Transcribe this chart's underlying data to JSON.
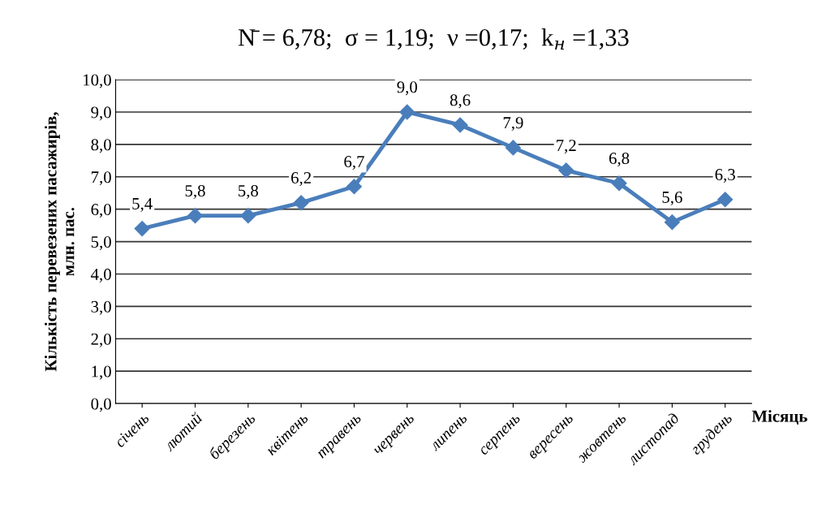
{
  "chart_data": {
    "type": "line",
    "title": "N̄ = 6,78;  σ = 1,19;  ν =0,17;  k$_{н}$ =1,33",
    "xlabel": "Місяць",
    "ylabel": "Кількість перевезених пасажирів,\nмлн. пас.",
    "categories": [
      "січень",
      "лютий",
      "березень",
      "квітень",
      "травень",
      "червень",
      "липень",
      "серпень",
      "вересень",
      "жовтень",
      "листопад",
      "грудень"
    ],
    "series": [
      {
        "color": "#4a7ebb",
        "values": [
          5.4,
          5.8,
          5.8,
          6.2,
          6.7,
          9.0,
          8.6,
          7.9,
          7.2,
          6.8,
          5.6,
          6.3
        ],
        "value_labels": [
          "5,4",
          "5,8",
          "5,8",
          "6,2",
          "6,7",
          "9,0",
          "8,6",
          "7,9",
          "7,2",
          "6,8",
          "5,6",
          "6,3"
        ]
      }
    ],
    "ylim": [
      0,
      10
    ],
    "yticks": [
      {
        "value": 0,
        "label": "0,0"
      },
      {
        "value": 1,
        "label": "1,0"
      },
      {
        "value": 2,
        "label": "2,0"
      },
      {
        "value": 3,
        "label": "3,0"
      },
      {
        "value": 4,
        "label": "4,0"
      },
      {
        "value": 5,
        "label": "5,0"
      },
      {
        "value": 6,
        "label": "6,0"
      },
      {
        "value": 7,
        "label": "7,0"
      },
      {
        "value": 8,
        "label": "8,0"
      },
      {
        "value": 9,
        "label": "9,0"
      },
      {
        "value": 10,
        "label": "10,0"
      }
    ],
    "grid": "y",
    "marker": "diamond",
    "line_style": "solid",
    "legend": false
  }
}
